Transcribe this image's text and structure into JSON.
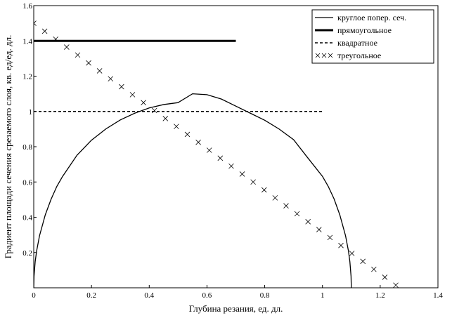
{
  "chart_data": {
    "type": "line",
    "title": "",
    "xlabel": "Глубина резания, ед. дл.",
    "ylabel": "Градиент площади сечения срезаемого слоя, кв. ед/ед. дл.",
    "xlim": [
      0,
      1.4
    ],
    "ylim": [
      0,
      1.6
    ],
    "xticks": [
      "0",
      "0.2",
      "0.4",
      "0.6",
      "0.8",
      "1",
      "1.2",
      "1.4"
    ],
    "yticks": [
      "0.2",
      "0.4",
      "0.6",
      "0.8",
      "1",
      "1.2",
      "1.4",
      "1.6"
    ],
    "grid": false,
    "legend_position": "top-right",
    "series": [
      {
        "name": "круглое попер. сеч.",
        "style": "solid-thin",
        "x": [
          0,
          0.001,
          0.005,
          0.01,
          0.02,
          0.04,
          0.06,
          0.08,
          0.1,
          0.15,
          0.2,
          0.25,
          0.3,
          0.35,
          0.4,
          0.45,
          0.5,
          0.55,
          0.6,
          0.65,
          0.7,
          0.75,
          0.8,
          0.85,
          0.9,
          0.95,
          1.0,
          1.02,
          1.04,
          1.06,
          1.08,
          1.09,
          1.095,
          1.099,
          1.1
        ],
        "y": [
          0,
          0.066,
          0.148,
          0.209,
          0.295,
          0.414,
          0.502,
          0.575,
          0.632,
          0.752,
          0.837,
          0.901,
          0.952,
          0.99,
          1.02,
          1.039,
          1.05,
          1.1,
          1.095,
          1.07,
          1.03,
          0.99,
          0.95,
          0.9,
          0.84,
          0.735,
          0.632,
          0.575,
          0.505,
          0.414,
          0.295,
          0.209,
          0.148,
          0.066,
          0
        ]
      },
      {
        "name": "прямоугольное",
        "style": "solid-thick",
        "x": [
          0,
          0.7
        ],
        "y": [
          1.4,
          1.4
        ]
      },
      {
        "name": "квадратное",
        "style": "dashed",
        "x": [
          0,
          1.0
        ],
        "y": [
          1.0,
          1.0
        ]
      },
      {
        "name": "треугольное",
        "style": "x-markers",
        "x": [
          0,
          0.038,
          0.076,
          0.114,
          0.152,
          0.19,
          0.228,
          0.266,
          0.304,
          0.342,
          0.38,
          0.418,
          0.456,
          0.494,
          0.532,
          0.57,
          0.608,
          0.646,
          0.684,
          0.722,
          0.76,
          0.798,
          0.836,
          0.874,
          0.912,
          0.95,
          0.988,
          1.026,
          1.064,
          1.102,
          1.14,
          1.178,
          1.216,
          1.254
        ],
        "y": [
          1.5,
          1.455,
          1.41,
          1.365,
          1.32,
          1.275,
          1.23,
          1.185,
          1.14,
          1.095,
          1.05,
          1.005,
          0.96,
          0.915,
          0.87,
          0.825,
          0.78,
          0.735,
          0.69,
          0.645,
          0.6,
          0.555,
          0.51,
          0.465,
          0.42,
          0.375,
          0.33,
          0.285,
          0.24,
          0.195,
          0.15,
          0.105,
          0.06,
          0.015
        ]
      }
    ]
  }
}
